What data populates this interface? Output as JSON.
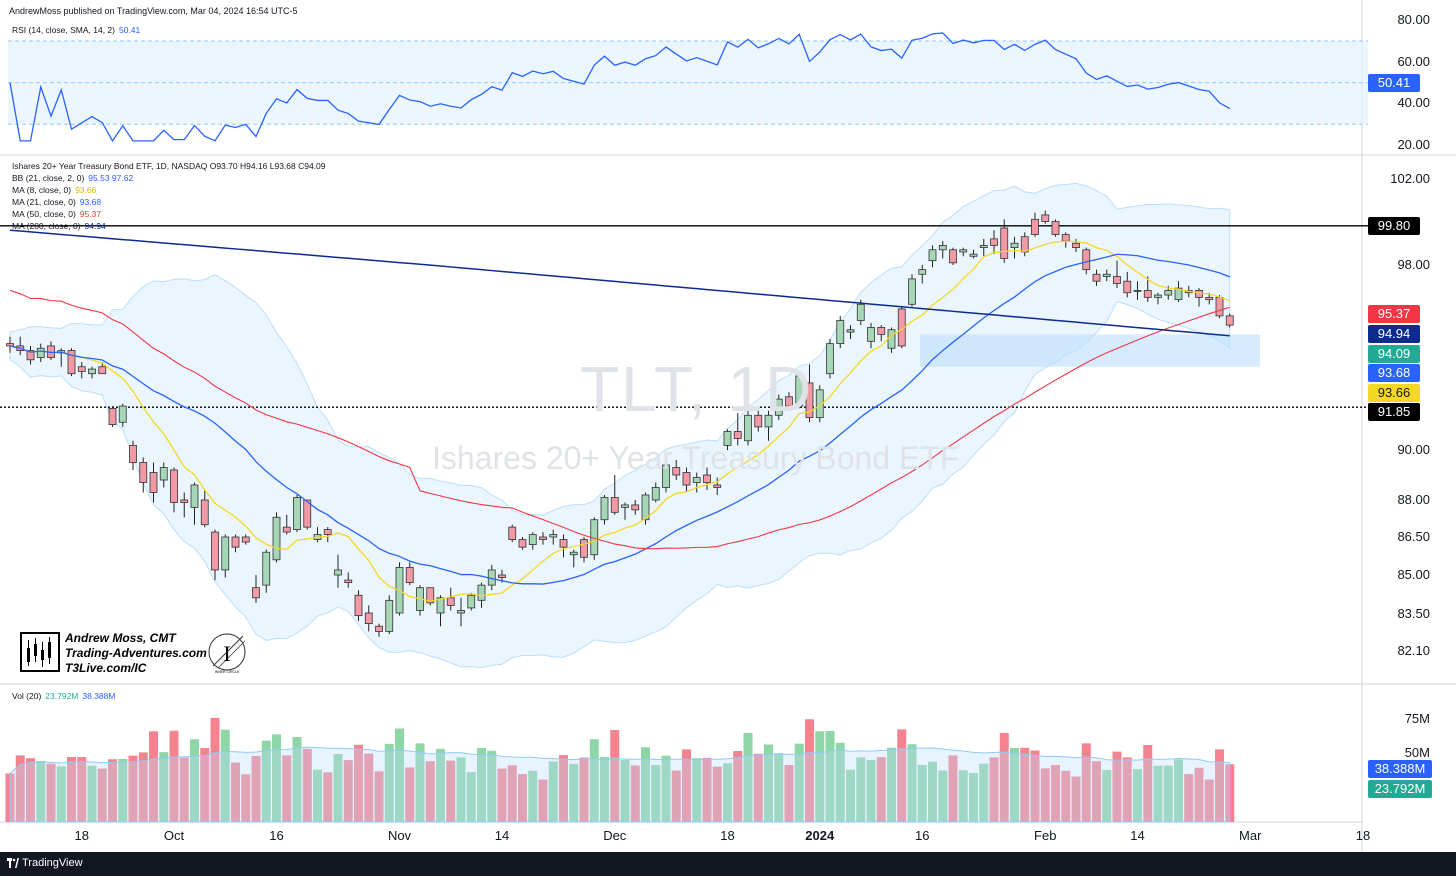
{
  "header": "AndrewMoss published on TradingView.com, Mar 04, 2024 16:54 UTC-5",
  "footer": "TradingView",
  "watermark": {
    "ticker": "TLT, 1D",
    "name": "Ishares 20+ Year Treasury Bond ETF"
  },
  "branding": {
    "name": "Andrew Moss, CMT",
    "site": "Trading-Adventures.com",
    "link": "T3Live.com/IC",
    "circle_text": "INNER CIRCLE"
  },
  "rsi": {
    "label": "RSI (14, close, SMA, 14, 2)",
    "value": "50.41",
    "ticks": [
      "80.00",
      "60.00",
      "40.00",
      "20.00"
    ]
  },
  "main": {
    "title": "Ishares 20+ Year Treasury Bond ETF, 1D, NASDAQ  O93.70  H94.16  L93.68  C94.09",
    "legend": [
      {
        "label": "BB (21, close, 2, 0)",
        "values": "95.53  97.62",
        "color": "#2962ff"
      },
      {
        "label": "MA (8, close, 0)",
        "values": "93.66",
        "color": "#f5d824"
      },
      {
        "label": "MA (21, close, 0)",
        "values": "93.68",
        "color": "#2962ff"
      },
      {
        "label": "MA (50, close, 0)",
        "values": "95.37",
        "color": "#f23645"
      },
      {
        "label": "MA (200, close, 0)",
        "values": "94.94",
        "color": "#0d2b8f"
      }
    ],
    "ticks": [
      "102.00",
      "98.00",
      "90.00",
      "88.00",
      "86.50",
      "85.00",
      "83.50",
      "82.10"
    ]
  },
  "badges": [
    {
      "text": "99.80",
      "bg": "#000000",
      "fg": "#ffffff",
      "price": 99.8
    },
    {
      "text": "95.37",
      "bg": "#f23645",
      "fg": "#ffffff",
      "price": 95.37
    },
    {
      "text": "94.94",
      "bg": "#0d2b8f",
      "fg": "#ffffff",
      "price": 94.94
    },
    {
      "text": "94.09",
      "bg": "#22ab94",
      "fg": "#ffffff",
      "price": 94.09
    },
    {
      "text": "93.68",
      "bg": "#2962ff",
      "fg": "#ffffff",
      "price": 93.68
    },
    {
      "text": "93.66",
      "bg": "#f5d824",
      "fg": "#131722",
      "price": 93.66
    },
    {
      "text": "91.85",
      "bg": "#000000",
      "fg": "#ffffff",
      "price": 91.85
    }
  ],
  "volume": {
    "label": "Vol (20)",
    "value": "23.792M",
    "ma": "38.388M",
    "ticks": [
      "75M",
      "50M"
    ],
    "badges": [
      {
        "text": "38.388M",
        "bg": "#2962ff"
      },
      {
        "text": "23.792M",
        "bg": "#22ab94"
      }
    ]
  },
  "xaxis": [
    {
      "t": "18",
      "i": 7,
      "bold": false
    },
    {
      "t": "Oct",
      "i": 16,
      "bold": false
    },
    {
      "t": "16",
      "i": 26,
      "bold": false
    },
    {
      "t": "Nov",
      "i": 38,
      "bold": false
    },
    {
      "t": "14",
      "i": 48,
      "bold": false
    },
    {
      "t": "Dec",
      "i": 59,
      "bold": false
    },
    {
      "t": "18",
      "i": 70,
      "bold": false
    },
    {
      "t": "2024",
      "i": 79,
      "bold": true
    },
    {
      "t": "16",
      "i": 89,
      "bold": false
    },
    {
      "t": "Feb",
      "i": 101,
      "bold": false
    },
    {
      "t": "14",
      "i": 110,
      "bold": false
    },
    {
      "t": "Mar",
      "i": 121,
      "bold": false
    },
    {
      "t": "18",
      "i": 132,
      "bold": false
    }
  ],
  "colors": {
    "up": "#26a69a",
    "down": "#ef5350",
    "up_fill": "#a5d6b5",
    "down_fill": "#f19aa6"
  },
  "chart_data": {
    "type": "candlestick",
    "levels": {
      "resistance": 99.8,
      "support": 91.85
    },
    "ohlc": [
      [
        94.6,
        94.9,
        94.2,
        94.5
      ],
      [
        94.5,
        94.9,
        94.1,
        94.3
      ],
      [
        94.3,
        94.5,
        93.7,
        93.9
      ],
      [
        94.0,
        94.6,
        93.8,
        94.4
      ],
      [
        94.5,
        94.7,
        93.9,
        94.0
      ],
      [
        94.2,
        94.4,
        93.6,
        94.3
      ],
      [
        94.3,
        94.4,
        93.2,
        93.3
      ],
      [
        93.6,
        93.8,
        93.1,
        93.4
      ],
      [
        93.3,
        93.6,
        93.1,
        93.5
      ],
      [
        93.6,
        93.8,
        93.3,
        93.3
      ],
      [
        91.8,
        91.9,
        91.0,
        91.1
      ],
      [
        91.2,
        92.0,
        91.0,
        91.9
      ],
      [
        90.2,
        90.4,
        89.2,
        89.5
      ],
      [
        89.5,
        89.7,
        88.3,
        88.7
      ],
      [
        89.1,
        89.5,
        87.9,
        88.3
      ],
      [
        88.8,
        89.5,
        88.5,
        89.3
      ],
      [
        89.2,
        89.3,
        87.5,
        87.9
      ],
      [
        88.0,
        88.3,
        87.3,
        87.9
      ],
      [
        87.7,
        88.7,
        87.0,
        88.6
      ],
      [
        88.0,
        88.4,
        86.9,
        87.0
      ],
      [
        86.7,
        86.8,
        84.8,
        85.2
      ],
      [
        85.2,
        86.6,
        84.9,
        86.5
      ],
      [
        86.5,
        86.6,
        85.9,
        86.1
      ],
      [
        86.5,
        86.6,
        86.2,
        86.3
      ],
      [
        84.5,
        85.0,
        83.9,
        84.1
      ],
      [
        84.6,
        86.0,
        84.3,
        85.9
      ],
      [
        85.6,
        87.5,
        85.5,
        87.3
      ],
      [
        86.9,
        87.4,
        86.6,
        86.7
      ],
      [
        86.8,
        88.2,
        86.7,
        88.1
      ],
      [
        88.0,
        88.0,
        86.8,
        86.9
      ],
      [
        86.4,
        86.9,
        86.3,
        86.6
      ],
      [
        86.8,
        86.9,
        86.3,
        86.6
      ],
      [
        85.0,
        85.8,
        84.5,
        85.2
      ],
      [
        84.8,
        85.1,
        84.5,
        84.7
      ],
      [
        84.2,
        84.4,
        83.2,
        83.4
      ],
      [
        83.5,
        83.8,
        82.8,
        83.1
      ],
      [
        83.0,
        83.1,
        82.6,
        82.8
      ],
      [
        82.8,
        84.2,
        82.7,
        84.0
      ],
      [
        83.5,
        85.5,
        83.4,
        85.3
      ],
      [
        85.3,
        85.5,
        84.6,
        84.7
      ],
      [
        83.6,
        84.6,
        83.4,
        84.5
      ],
      [
        84.5,
        84.5,
        83.8,
        83.9
      ],
      [
        83.5,
        84.2,
        83.0,
        84.1
      ],
      [
        84.1,
        84.5,
        83.6,
        83.8
      ],
      [
        83.5,
        84.1,
        83.0,
        83.6
      ],
      [
        83.7,
        84.3,
        83.6,
        84.2
      ],
      [
        84.0,
        84.7,
        83.7,
        84.6
      ],
      [
        84.6,
        85.4,
        84.4,
        85.2
      ],
      [
        85.0,
        85.2,
        84.7,
        84.9
      ],
      [
        86.9,
        87.0,
        86.3,
        86.4
      ],
      [
        86.4,
        86.5,
        86.0,
        86.1
      ],
      [
        86.2,
        86.7,
        86.0,
        86.6
      ],
      [
        86.5,
        86.7,
        86.2,
        86.4
      ],
      [
        86.5,
        86.8,
        86.2,
        86.6
      ],
      [
        86.4,
        86.6,
        85.7,
        86.1
      ],
      [
        85.8,
        86.0,
        85.3,
        85.9
      ],
      [
        86.4,
        86.5,
        85.5,
        85.7
      ],
      [
        85.8,
        87.3,
        85.6,
        87.2
      ],
      [
        87.2,
        88.2,
        87.0,
        88.1
      ],
      [
        88.1,
        89.0,
        87.4,
        87.5
      ],
      [
        87.7,
        87.9,
        87.2,
        87.8
      ],
      [
        87.8,
        88.0,
        87.4,
        87.6
      ],
      [
        87.2,
        88.3,
        87.0,
        88.2
      ],
      [
        88.0,
        88.7,
        87.9,
        88.5
      ],
      [
        88.5,
        89.5,
        88.3,
        89.4
      ],
      [
        89.3,
        89.6,
        88.8,
        89.0
      ],
      [
        89.1,
        89.3,
        88.3,
        88.6
      ],
      [
        88.7,
        89.1,
        88.3,
        88.9
      ],
      [
        89.0,
        89.3,
        88.4,
        88.7
      ],
      [
        88.6,
        88.9,
        88.2,
        88.5
      ]
    ],
    "ohlc_2": [
      [
        90.2,
        90.9,
        90.0,
        90.8
      ],
      [
        90.8,
        91.6,
        90.2,
        90.5
      ],
      [
        90.4,
        91.7,
        90.2,
        91.5
      ],
      [
        91.5,
        91.7,
        90.8,
        91.0
      ],
      [
        91.0,
        91.7,
        90.4,
        91.5
      ],
      [
        91.5,
        92.4,
        91.3,
        92.2
      ],
      [
        92.3,
        92.5,
        91.7,
        91.9
      ],
      [
        91.9,
        93.4,
        91.8,
        93.2
      ],
      [
        92.9,
        93.7,
        91.2,
        91.4
      ],
      [
        91.4,
        92.8,
        91.2,
        92.6
      ],
      [
        93.3,
        94.8,
        93.1,
        94.6
      ],
      [
        94.6,
        95.8,
        94.4,
        95.6
      ],
      [
        95.1,
        95.4,
        94.8,
        95.2
      ],
      [
        95.6,
        96.5,
        95.4,
        96.3
      ],
      [
        94.7,
        95.5,
        94.4,
        95.3
      ],
      [
        95.3,
        95.4,
        94.7,
        95.0
      ],
      [
        94.4,
        95.3,
        94.2,
        95.2
      ],
      [
        96.1,
        96.2,
        94.4,
        94.5
      ],
      [
        96.3,
        97.6,
        96.2,
        97.4
      ],
      [
        97.6,
        98.0,
        97.2,
        97.8
      ],
      [
        98.2,
        98.9,
        97.9,
        98.7
      ],
      [
        98.7,
        99.1,
        98.3,
        98.9
      ],
      [
        98.7,
        98.8,
        98.0,
        98.1
      ],
      [
        98.6,
        98.8,
        98.4,
        98.7
      ],
      [
        98.4,
        98.7,
        98.3,
        98.5
      ],
      [
        98.8,
        99.2,
        98.4,
        98.9
      ],
      [
        99.2,
        99.6,
        98.5,
        98.9
      ],
      [
        99.7,
        100.1,
        98.1,
        98.3
      ],
      [
        98.8,
        99.3,
        98.3,
        99.0
      ],
      [
        99.3,
        99.5,
        98.4,
        98.6
      ],
      [
        100.1,
        100.4,
        99.3,
        99.4
      ],
      [
        100.3,
        100.5,
        99.9,
        100.0
      ],
      [
        100.0,
        100.1,
        99.3,
        99.4
      ],
      [
        99.4,
        99.5,
        98.8,
        99.1
      ],
      [
        99.0,
        99.2,
        98.6,
        98.8
      ],
      [
        98.7,
        98.8,
        97.6,
        97.8
      ],
      [
        97.6,
        97.8,
        97.1,
        97.3
      ],
      [
        97.5,
        97.8,
        97.3,
        97.6
      ],
      [
        97.5,
        98.2,
        97.0,
        97.2
      ],
      [
        97.3,
        97.7,
        96.6,
        96.8
      ],
      [
        96.9,
        97.3,
        96.5,
        96.9
      ],
      [
        96.9,
        97.5,
        96.4,
        96.6
      ],
      [
        96.6,
        96.8,
        96.3,
        96.7
      ],
      [
        96.7,
        97.1,
        96.5,
        96.9
      ],
      [
        96.5,
        97.3,
        96.4,
        97.0
      ],
      [
        96.9,
        97.1,
        96.6,
        96.8
      ],
      [
        96.9,
        97.0,
        96.2,
        96.6
      ],
      [
        96.6,
        96.8,
        96.3,
        96.5
      ],
      [
        96.6,
        96.7,
        95.7,
        95.8
      ],
      [
        95.8,
        95.9,
        95.3,
        95.4
      ]
    ]
  }
}
